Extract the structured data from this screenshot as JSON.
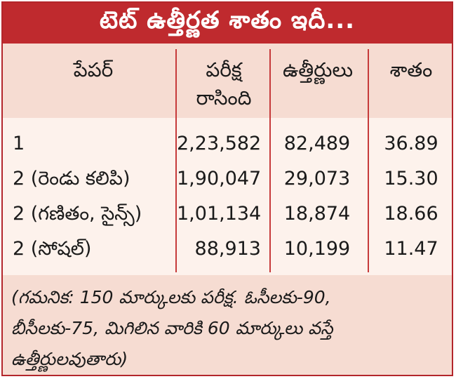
{
  "title": "టెట్ ఉత్తీర్ణత శాతం ఇదీ...",
  "table": {
    "headers": {
      "paper": "పేపర్",
      "written_line1": "పరీక్ష",
      "written_line2": "రాసింది",
      "passed": "ఉత్తీర్ణులు",
      "percent": "శాతం"
    },
    "rows": [
      {
        "paper": "1",
        "written": "2,23,582",
        "passed": "82,489",
        "percent": "36.89"
      },
      {
        "paper": "2 (రెండు కలిపి)",
        "written": "1,90,047",
        "passed": "29,073",
        "percent": "15.30"
      },
      {
        "paper": "2 (గణితం, సైన్స్)",
        "written": "1,01,134",
        "passed": "18,874",
        "percent": "18.66"
      },
      {
        "paper": "2 (సోషల్)",
        "written": "88,913",
        "passed": "10,199",
        "percent": "11.47"
      }
    ]
  },
  "note": {
    "line1": "(గమనిక: 150 మార్కులకు పరీక్ష. ఓసీలకు-90,",
    "line2": "బీసీలకు-75, మిగిలిన వారికి 60 మార్కులు వస్తే",
    "line3": "ఉత్తీర్ణులవుతారు)"
  },
  "colors": {
    "title_bg": "#bf2a2e",
    "header_bg": "#f6dcd2",
    "body_bg": "#fdf2ec",
    "divider": "#c63a3a"
  }
}
